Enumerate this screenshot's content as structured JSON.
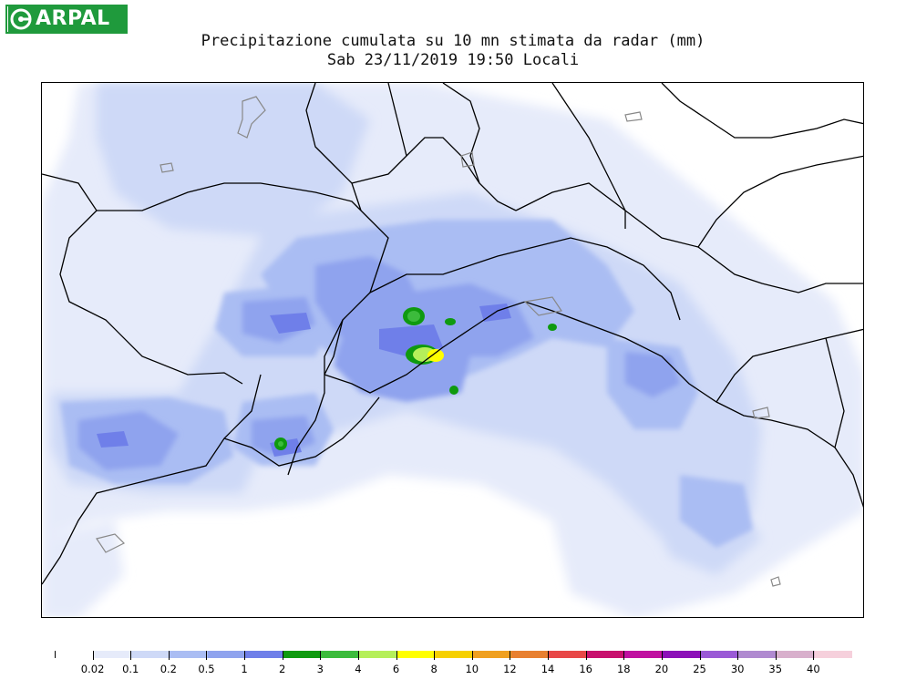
{
  "logo": {
    "text": "ARPAL"
  },
  "title": {
    "line1": "Precipitazione cumulata su 10 mn stimata da radar (mm)",
    "line2": "Sab 23/11/2019 19:50 Locali"
  },
  "legend": {
    "labels": [
      "0.02",
      "0.1",
      "0.2",
      "0.5",
      "1",
      "2",
      "3",
      "4",
      "6",
      "8",
      "10",
      "12",
      "14",
      "16",
      "18",
      "20",
      "25",
      "30",
      "35",
      "40"
    ],
    "colors": [
      "#e6ebfa",
      "#ced9f7",
      "#aabdf3",
      "#8fa3ee",
      "#6f7fe9",
      "#0f9a0f",
      "#3cbb3c",
      "#b5ef5a",
      "#ffff00",
      "#f6d000",
      "#f0a020",
      "#e88030",
      "#e84848",
      "#c8106e",
      "#c010a0",
      "#8c10b8",
      "#9a5ad6",
      "#b08ad0",
      "#d8b0cc",
      "#f6d0dc"
    ],
    "accent": "#1f9a3c"
  }
}
